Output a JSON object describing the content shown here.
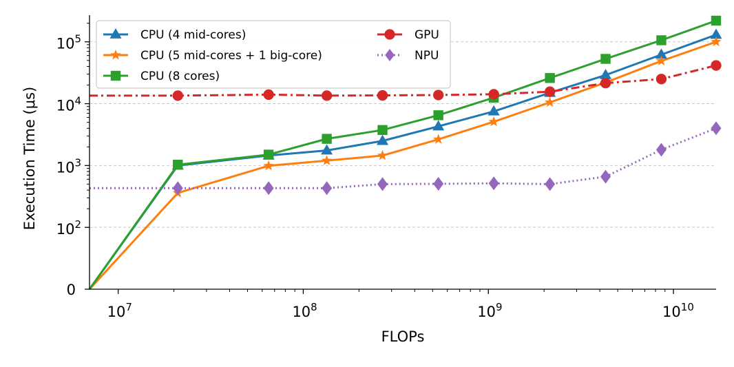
{
  "chart_data": {
    "type": "line",
    "title": "",
    "xlabel": "FLOPs",
    "ylabel": "Execution Time (μs)",
    "xscale": "log",
    "yscale": "symlog",
    "xlim": [
      7000000,
      17000000000
    ],
    "ylim": [
      0,
      270000
    ],
    "grid": "horizontal dashed at major y ticks",
    "legend_position": "upper-left, two columns",
    "x_ticks": [
      {
        "value": 10000000,
        "base": "10",
        "exp": "7"
      },
      {
        "value": 100000000,
        "base": "10",
        "exp": "8"
      },
      {
        "value": 1000000000,
        "base": "10",
        "exp": "9"
      },
      {
        "value": 10000000000,
        "base": "10",
        "exp": "10"
      }
    ],
    "y_ticks": [
      {
        "value": 0,
        "base": "0",
        "exp": ""
      },
      {
        "value": 100,
        "base": "10",
        "exp": "2"
      },
      {
        "value": 1000,
        "base": "10",
        "exp": "3"
      },
      {
        "value": 10000,
        "base": "10",
        "exp": "4"
      },
      {
        "value": 100000,
        "base": "10",
        "exp": "5"
      }
    ],
    "series": [
      {
        "name": "CPU (4 mid-cores)",
        "color": "#1f77b4",
        "marker": "triangle",
        "dash": "solid",
        "x": [
          0,
          21000000,
          65000000,
          134000000,
          268000000,
          537000000,
          1070000000,
          2150000000,
          4300000000,
          8600000000,
          17000000000
        ],
        "y": [
          0,
          1000,
          1450,
          1750,
          2500,
          4300,
          7500,
          15000,
          29000,
          62000,
          130000
        ]
      },
      {
        "name": "CPU (5 mid-cores + 1 big-core)",
        "color": "#ff7f0e",
        "marker": "star",
        "dash": "solid",
        "x": [
          0,
          21000000,
          65000000,
          134000000,
          268000000,
          537000000,
          1070000000,
          2150000000,
          4300000000,
          8600000000,
          17000000000
        ],
        "y": [
          0,
          360,
          990,
          1200,
          1450,
          2650,
          5100,
          10500,
          22000,
          49000,
          100000
        ]
      },
      {
        "name": "CPU (8 cores)",
        "color": "#2ca02c",
        "marker": "square",
        "dash": "solid",
        "x": [
          0,
          21000000,
          65000000,
          134000000,
          268000000,
          537000000,
          1070000000,
          2150000000,
          4300000000,
          8600000000,
          17000000000
        ],
        "y": [
          0,
          1030,
          1500,
          2700,
          3750,
          6500,
          12500,
          26000,
          53000,
          106000,
          220000
        ]
      },
      {
        "name": "GPU",
        "color": "#d62728",
        "marker": "circle",
        "dash": "dashdot",
        "x": [
          7000000,
          21000000,
          65000000,
          134000000,
          268000000,
          537000000,
          1070000000,
          2150000000,
          4300000000,
          8600000000,
          17000000000
        ],
        "y": [
          13500,
          13500,
          14000,
          13500,
          13600,
          13800,
          14200,
          15600,
          21500,
          25000,
          41500
        ]
      },
      {
        "name": "NPU",
        "color": "#9467bd",
        "marker": "diamond",
        "dash": "dotted",
        "x": [
          7000000,
          21000000,
          65000000,
          134000000,
          268000000,
          537000000,
          1070000000,
          2150000000,
          4300000000,
          8600000000,
          17000000000
        ],
        "y": [
          430,
          430,
          430,
          430,
          500,
          505,
          515,
          500,
          660,
          1800,
          4000
        ]
      }
    ]
  }
}
